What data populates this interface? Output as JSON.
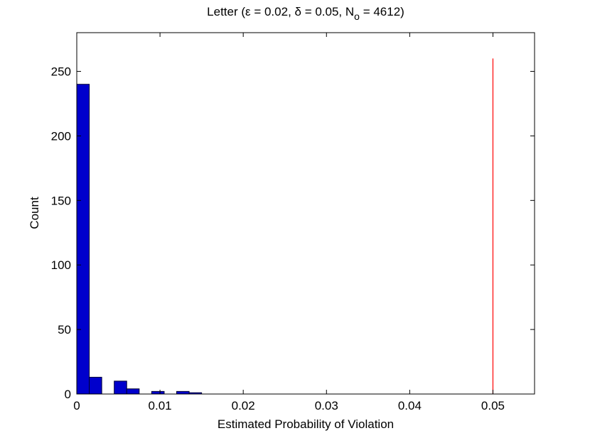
{
  "chart_data": {
    "type": "histogram",
    "title": [
      "Letter (ε = 0.02, δ = 0.05, N",
      "o",
      " = 4612)"
    ],
    "xlabel": "Estimated Probability of Violation",
    "ylabel": "Count",
    "bins": [
      0,
      0.0015,
      0.003,
      0.0045,
      0.006,
      0.0075,
      0.009,
      0.0105,
      0.012,
      0.0135,
      0.015
    ],
    "counts": [
      240,
      13,
      0,
      10,
      4,
      0,
      2,
      0,
      2,
      1
    ],
    "color": "#0000cc",
    "edgecolor": "#000033",
    "vline": {
      "x": 0.05,
      "y": [
        0,
        260
      ],
      "color": "#ff0000"
    },
    "xlim": [
      0,
      0.055
    ],
    "xticks": [
      0,
      0.01,
      0.02,
      0.03,
      0.04,
      0.05
    ],
    "ylim": [
      0,
      280
    ],
    "yticks": [
      0,
      50,
      100,
      150,
      200,
      250
    ],
    "grid": false
  }
}
